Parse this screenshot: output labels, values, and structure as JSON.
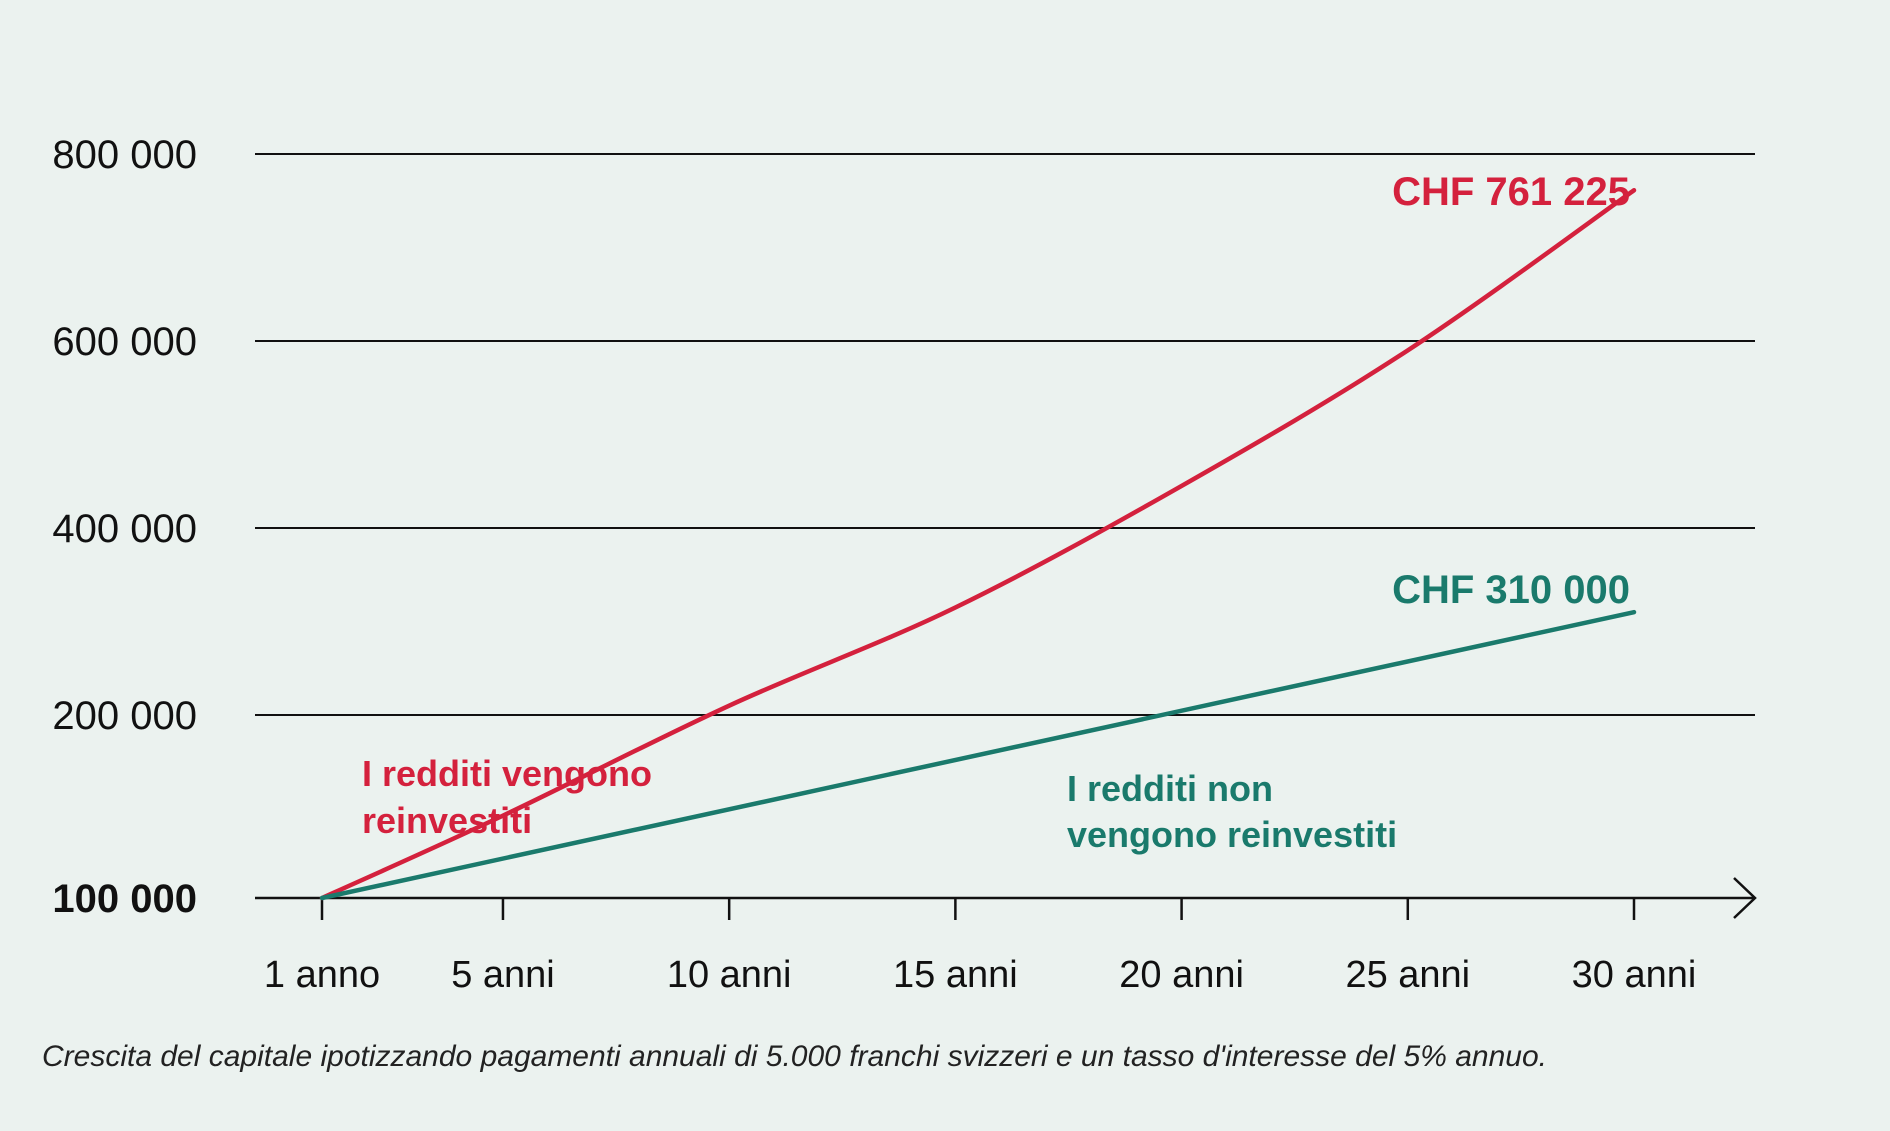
{
  "chart_data": {
    "type": "line",
    "x": [
      1,
      5,
      10,
      15,
      20,
      25,
      30
    ],
    "xtick_labels": [
      "1 anno",
      "5 anni",
      "10 anni",
      "15 anni",
      "20 anni",
      "25 anni",
      "30 anni"
    ],
    "xlim": [
      1,
      30
    ],
    "ytick_values": [
      100000,
      200000,
      400000,
      600000,
      800000
    ],
    "ytick_labels": [
      "100 000",
      "200 000",
      "400 000",
      "600 000",
      "800 000"
    ],
    "ylim": [
      100000,
      800000
    ],
    "grid": true,
    "series": [
      {
        "key": "reinvested",
        "color": "#d4213d",
        "x": [
          1,
          5,
          10,
          15,
          20,
          25,
          30
        ],
        "values": [
          100000,
          145000,
          210000,
          315000,
          445000,
          590000,
          761225
        ],
        "end_label": "CHF 761 225",
        "annotation": [
          "I redditi vengono",
          "reinvestiti"
        ]
      },
      {
        "key": "not_reinvested",
        "color": "#1a7a6c",
        "x": [
          1,
          30
        ],
        "values": [
          100000,
          310000
        ],
        "end_label": "CHF 310 000",
        "annotation": [
          "I redditi non",
          "vengono reinvestiti"
        ]
      }
    ]
  },
  "caption": "Crescita del capitale ipotizzando pagamenti annuali di 5.000 franchi svizzeri e un tasso d'interesse del 5% annuo."
}
